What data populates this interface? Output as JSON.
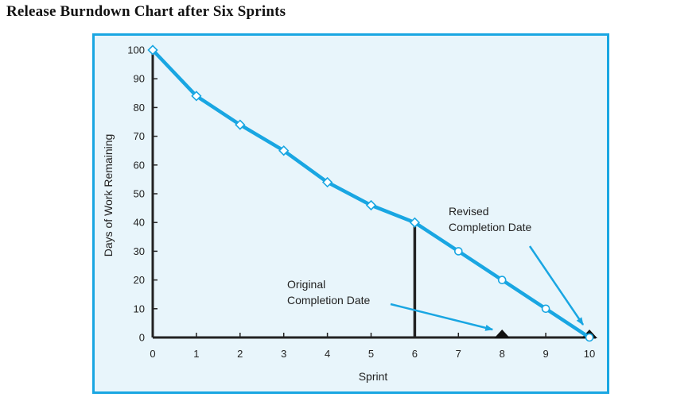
{
  "page_title": "Release Burndown Chart after Six Sprints",
  "colors": {
    "frame": "#19a6e2",
    "panel_bg": "#e8f5fb",
    "series_line": "#19a6e2",
    "axis": "#222222",
    "marker_fill": "#ffffff"
  },
  "chart_data": {
    "type": "line",
    "title": "Release Burndown Chart after Six Sprints",
    "xlabel": "Sprint",
    "ylabel": "Days of Work Remaining",
    "xlim": [
      0,
      10
    ],
    "ylim": [
      0,
      100
    ],
    "x_ticks": [
      0,
      1,
      2,
      3,
      4,
      5,
      6,
      7,
      8,
      9,
      10
    ],
    "y_ticks": [
      0,
      10,
      20,
      30,
      40,
      50,
      60,
      70,
      80,
      90,
      100
    ],
    "grid": false,
    "series": [
      {
        "x": [
          0,
          1,
          2,
          3,
          4,
          5,
          6,
          7,
          8,
          9,
          10
        ],
        "y": [
          100,
          84,
          74,
          65,
          54,
          46,
          40,
          30,
          20,
          10,
          0
        ],
        "markers": [
          "diamond",
          "diamond",
          "diamond",
          "diamond",
          "diamond",
          "diamond",
          "diamond",
          "circle",
          "circle",
          "circle",
          "circle"
        ]
      }
    ],
    "current_sprint_marker": {
      "x": 6,
      "y": 40
    },
    "completion_markers": [
      8,
      10
    ],
    "annotations": [
      {
        "lines": [
          "Original",
          "Completion Date"
        ],
        "points_to_x": 8
      },
      {
        "lines": [
          "Revised",
          "Completion Date"
        ],
        "points_to_x": 10
      }
    ]
  }
}
